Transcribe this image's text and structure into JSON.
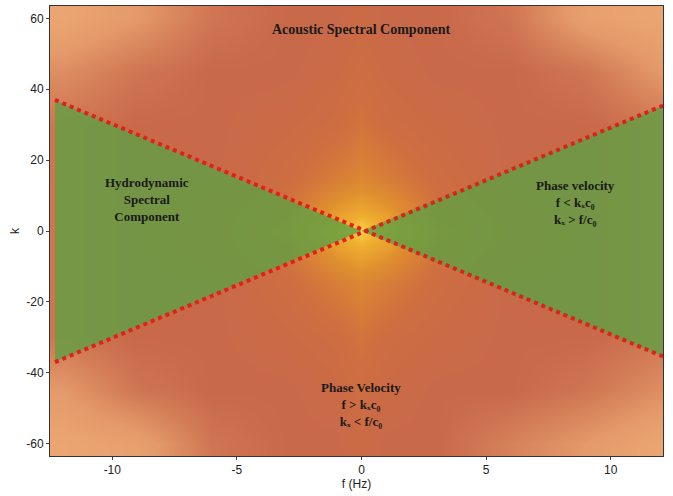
{
  "chart_data": {
    "type": "heatmap",
    "x_label": "f (Hz)",
    "y_label": "k",
    "x": [
      -12,
      -9,
      -6,
      -3,
      -1,
      0,
      1,
      3,
      6,
      9,
      12
    ],
    "y": [
      -60,
      -45,
      -30,
      -15,
      -5,
      0,
      5,
      15,
      30,
      45,
      60
    ],
    "cells": [
      [
        0.2,
        0.25,
        0.45,
        0.5,
        0.5,
        0.55,
        0.5,
        0.5,
        0.4,
        0.3,
        0.2
      ],
      [
        0.3,
        0.45,
        0.5,
        0.5,
        0.55,
        0.6,
        0.55,
        0.5,
        0.5,
        0.45,
        0.35
      ],
      [
        0.45,
        0.5,
        0.5,
        0.55,
        0.6,
        0.65,
        0.6,
        0.55,
        0.5,
        0.5,
        0.45
      ],
      [
        0.45,
        0.5,
        0.5,
        0.6,
        0.7,
        0.75,
        0.7,
        0.6,
        0.5,
        0.5,
        0.45
      ],
      [
        0.45,
        0.5,
        0.55,
        0.65,
        0.85,
        0.9,
        0.85,
        0.65,
        0.55,
        0.5,
        0.45
      ],
      [
        0.45,
        0.5,
        0.55,
        0.7,
        0.9,
        1.0,
        0.9,
        0.7,
        0.55,
        0.5,
        0.45
      ],
      [
        0.45,
        0.5,
        0.55,
        0.65,
        0.85,
        0.9,
        0.85,
        0.65,
        0.55,
        0.5,
        0.45
      ],
      [
        0.45,
        0.5,
        0.5,
        0.6,
        0.7,
        0.75,
        0.7,
        0.6,
        0.5,
        0.5,
        0.45
      ],
      [
        0.45,
        0.5,
        0.5,
        0.55,
        0.6,
        0.65,
        0.6,
        0.55,
        0.5,
        0.5,
        0.45
      ],
      [
        0.35,
        0.45,
        0.5,
        0.5,
        0.55,
        0.6,
        0.55,
        0.5,
        0.5,
        0.45,
        0.3
      ],
      [
        0.2,
        0.3,
        0.45,
        0.5,
        0.5,
        0.55,
        0.5,
        0.5,
        0.45,
        0.25,
        0.2
      ]
    ],
    "zlim": [
      0,
      1
    ],
    "xlim": [
      -12.5,
      12.1
    ],
    "ylim": [
      -63.5,
      63.5
    ],
    "xticks": [
      -10,
      -5,
      0,
      5,
      10
    ],
    "yticks": [
      -60,
      -40,
      -20,
      0,
      20,
      40,
      60
    ],
    "regions": {
      "color": "#5fa043",
      "shapes": [
        {
          "x": [
            -12.3,
            -12.3,
            0
          ],
          "y": [
            37,
            -37,
            0
          ]
        },
        {
          "x": [
            12.3,
            12.3,
            0
          ],
          "y": [
            36,
            -36,
            0
          ]
        }
      ]
    },
    "boundaries": {
      "color": "#e0201a",
      "line_style": "dotted",
      "lines": [
        {
          "x": [
            -12.3,
            12.3
          ],
          "y": [
            37,
            -36
          ]
        },
        {
          "x": [
            -12.3,
            12.3
          ],
          "y": [
            -37,
            36
          ]
        }
      ]
    },
    "annotations": [
      {
        "lines": [
          "Acoustic Spectral Component"
        ]
      },
      {
        "lines": [
          "Hydrodynamic",
          "Spectral",
          "Component"
        ]
      },
      {
        "lines": [
          "Phase velocity",
          "f < kₓc₀",
          "kₓ > f/c₀"
        ]
      },
      {
        "lines": [
          "Phase Velocity",
          "f > kₓc₀",
          "kₓ < f/c₀"
        ]
      }
    ]
  }
}
